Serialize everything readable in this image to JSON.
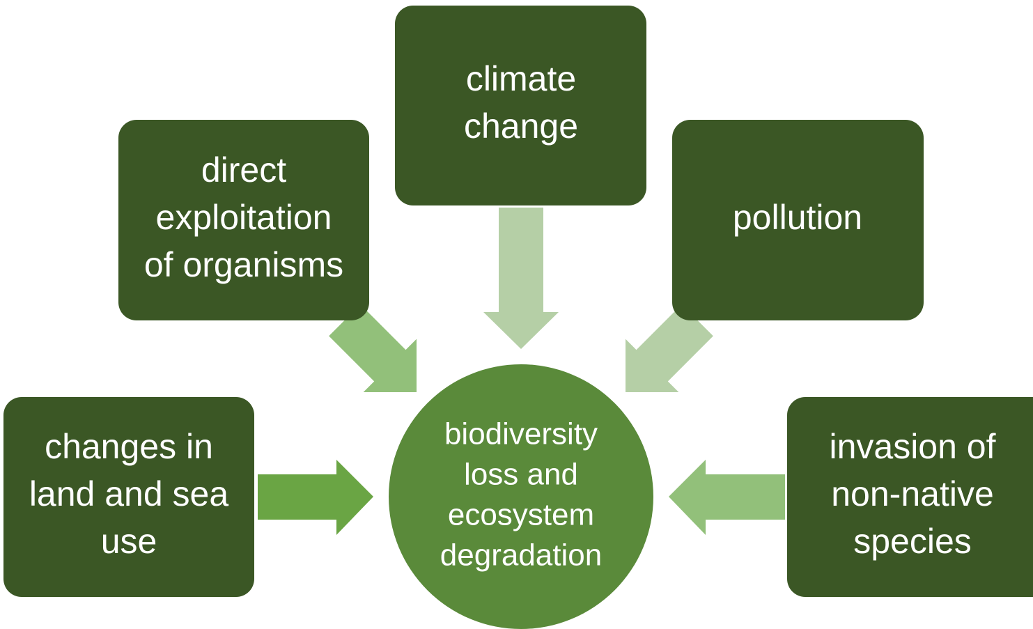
{
  "nodes": [
    {
      "lines": [
        "changes in",
        "land and sea",
        "use"
      ]
    },
    {
      "lines": [
        "direct",
        "exploitation",
        "of organisms"
      ]
    },
    {
      "lines": [
        "climate",
        "change"
      ]
    },
    {
      "lines": [
        "pollution"
      ]
    },
    {
      "lines": [
        "invasion of",
        "non-native",
        "species"
      ]
    }
  ],
  "center": {
    "lines": [
      "biodiversity",
      "loss and",
      "ecosystem",
      "degradation"
    ]
  }
}
